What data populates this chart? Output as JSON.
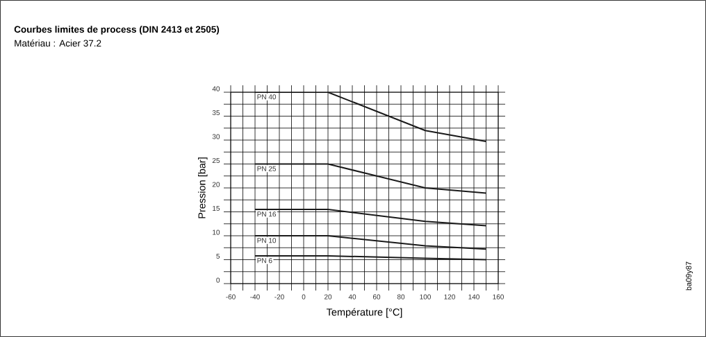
{
  "chart_data": {
    "type": "line",
    "title": "Courbes limites de process (DIN 2413 et 2505)",
    "subtitle": "Matériau : Acier 37.2",
    "xlabel": "Température [°C]",
    "ylabel": "Pression [bar]",
    "annotations": [
      "ba09y87"
    ],
    "x": [
      -40,
      20,
      100,
      150
    ],
    "series": [
      {
        "name": "PN 40",
        "color": "#1a1a1a",
        "values": [
          40,
          40,
          32,
          29.7
        ]
      },
      {
        "name": "PN 25",
        "color": "#1a1a1a",
        "values": [
          25,
          25,
          20,
          18.9
        ]
      },
      {
        "name": "PN 16",
        "color": "#1a1a1a",
        "values": [
          15.5,
          15.5,
          13,
          12.1
        ]
      },
      {
        "name": "PN 10",
        "color": "#1a1a1a",
        "values": [
          10,
          10,
          7.9,
          7.2
        ]
      },
      {
        "name": "PN 6",
        "color": "#1a1a1a",
        "values": [
          5.8,
          5.8,
          5.3,
          5
        ]
      }
    ],
    "xlim": [
      -60,
      160
    ],
    "ylim": [
      0,
      40
    ],
    "xticks": [
      -60,
      -40,
      -20,
      0,
      20,
      40,
      60,
      80,
      100,
      120,
      140,
      160
    ],
    "yticks": [
      0,
      5,
      10,
      15,
      20,
      25,
      30,
      35,
      40
    ],
    "grid": true,
    "legend": false,
    "marker": "none",
    "line_style": "solid"
  }
}
